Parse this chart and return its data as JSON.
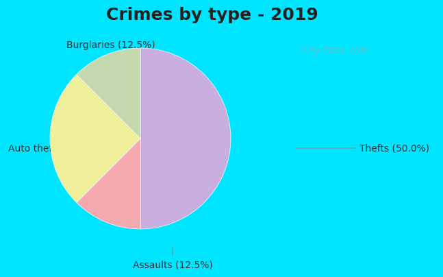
{
  "title": "Crimes by type - 2019",
  "slices": [
    {
      "label": "Thefts (50.0%)",
      "value": 50.0,
      "color": "#c9aee0"
    },
    {
      "label": "Burglaries (12.5%)",
      "value": 12.5,
      "color": "#f4a9b0"
    },
    {
      "label": "Auto thefts (25.0%)",
      "value": 25.0,
      "color": "#f0f09a"
    },
    {
      "label": "Assaults (12.5%)",
      "value": 12.5,
      "color": "#c5d9b0"
    }
  ],
  "background_top": "#00e5ff",
  "background_main": "#d8f0e0",
  "title_fontsize": 18,
  "label_fontsize": 10,
  "watermark": "City-Data.com"
}
